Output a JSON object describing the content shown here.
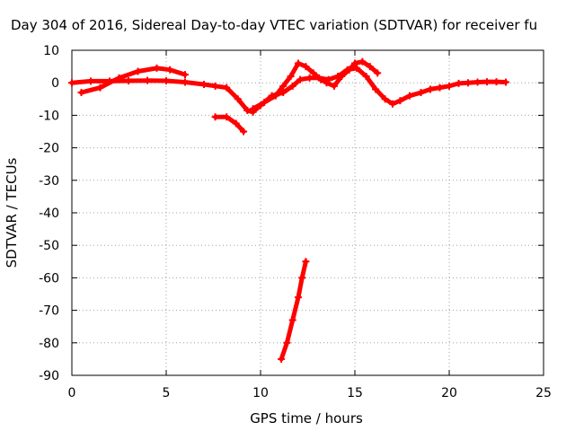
{
  "chart_data": {
    "type": "line",
    "title": "Day 304 of 2016, Sidereal Day-to-day VTEC variation (SDTVAR) for receiver fu",
    "xlabel": "GPS time / hours",
    "ylabel": "SDTVAR / TECUs",
    "xlim": [
      0,
      25
    ],
    "ylim": [
      -90,
      10
    ],
    "xticks": [
      "0",
      "5",
      "10",
      "15",
      "20",
      "25"
    ],
    "yticks": [
      "10",
      "0",
      "-10",
      "-20",
      "-30",
      "-40",
      "-50",
      "-60",
      "-70",
      "-80",
      "-90"
    ],
    "grid": true,
    "colors": {
      "series": "#ff0000",
      "grid": "#a0a0a0",
      "axes": "#000000"
    },
    "series": [
      {
        "x": [
          0,
          1,
          2,
          3,
          4,
          5,
          6,
          7,
          7.6,
          8.2,
          8.8,
          9.3,
          9.6,
          10,
          10.6,
          11.2,
          11.7,
          12.1,
          12.6,
          13.1,
          13.6,
          14.1,
          14.6,
          15.1,
          15.6,
          16.1,
          16.6,
          17,
          17.4,
          17.9,
          18.5,
          19,
          19.5,
          20,
          20.5,
          21,
          21.5,
          22,
          22.5,
          23
        ],
        "y": [
          0,
          0.5,
          0.5,
          0.6,
          0.7,
          0.6,
          0.2,
          -0.5,
          -1,
          -1.5,
          -5,
          -8.5,
          -9,
          -7,
          -4,
          -3,
          -1,
          1,
          1.5,
          1.5,
          1,
          2,
          4,
          4.5,
          2,
          -2,
          -5,
          -6.5,
          -5.5,
          -4,
          -3,
          -2,
          -1.5,
          -1,
          -0.2,
          0,
          0.2,
          0.3,
          0.3,
          0.2
        ]
      },
      {
        "x": [
          0.5,
          1.5,
          2.5,
          3.5,
          4.5,
          5.2,
          6
        ],
        "y": [
          -3,
          -1.5,
          1.5,
          3.5,
          4.5,
          4,
          2.5
        ]
      },
      {
        "x": [
          7.6,
          8.2,
          8.7,
          9.1
        ],
        "y": [
          -10.5,
          -10.5,
          -12.5,
          -15
        ]
      },
      {
        "x": [
          9.6,
          10.2,
          10.8,
          11.2,
          11.6,
          12,
          12.4,
          12.8,
          13.2,
          13.5,
          13.9,
          14.3,
          14.7,
          15,
          15.4,
          15.8,
          16.2
        ],
        "y": [
          -8,
          -6,
          -4,
          -1,
          2,
          6,
          5,
          3,
          1,
          0,
          -1,
          2,
          4,
          6,
          6.5,
          5,
          3
        ]
      },
      {
        "x": [
          11.1,
          11.4,
          11.7,
          12,
          12.2,
          12.4
        ],
        "y": [
          -85,
          -80,
          -73,
          -66,
          -60,
          -55
        ]
      }
    ]
  }
}
